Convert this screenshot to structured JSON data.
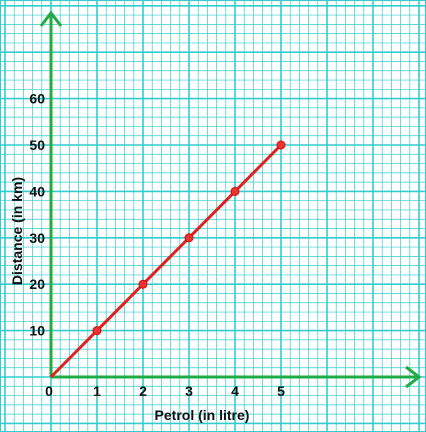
{
  "chart_data": {
    "type": "line",
    "title": "",
    "xlabel": "Petrol (in litre)",
    "ylabel": "Distance (in km)",
    "origin_label": "0",
    "x": [
      0,
      1,
      2,
      3,
      4,
      5
    ],
    "series": [
      {
        "values": [
          0,
          10,
          20,
          30,
          40,
          50
        ]
      }
    ],
    "x_ticks": [
      "1",
      "2",
      "3",
      "4",
      "5"
    ],
    "y_ticks": [
      "10",
      "20",
      "30",
      "40",
      "50",
      "60"
    ],
    "xlim": [
      0,
      8
    ],
    "ylim": [
      0,
      80
    ],
    "grid": true,
    "colors": {
      "grid": "#33cccc",
      "axes": "#22aa44",
      "line": "#dd2222",
      "point": "#ee3333"
    }
  }
}
